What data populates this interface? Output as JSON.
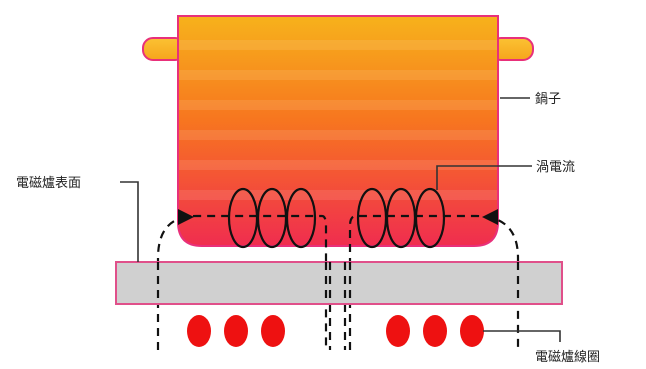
{
  "labels": {
    "pot": "鍋子",
    "eddy_current": "渦電流",
    "cooktop_surface": "電磁爐表面",
    "coil": "電磁爐線圈"
  },
  "colors": {
    "pot_top": "#f7b21b",
    "pot_bottom": "#f02d4f",
    "pot_outline": "#e8307a",
    "surface_fill": "#d0d0d0",
    "surface_outline": "#e0508a",
    "coil_dot": "#ee1111",
    "field_line": "#111111",
    "leader_line": "#333333"
  },
  "icons": {
    "field_arrow_left": "arrow-right-icon",
    "field_arrow_right": "arrow-left-icon"
  }
}
